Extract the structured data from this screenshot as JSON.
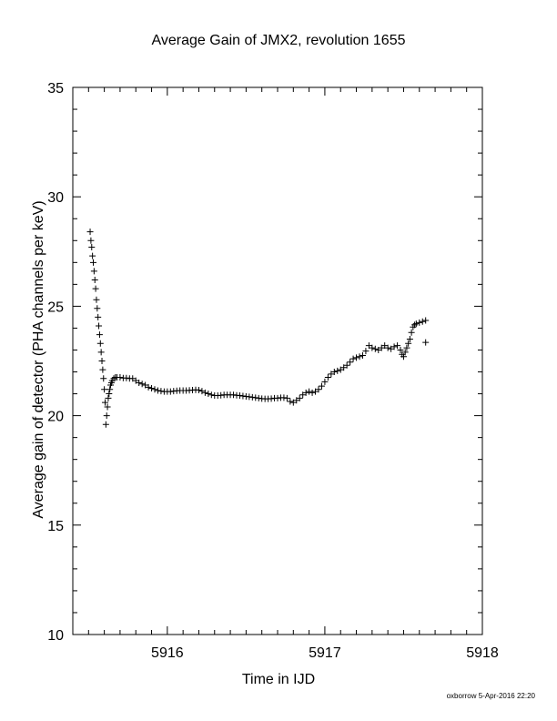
{
  "chart_data": {
    "type": "scatter",
    "title": "Average Gain of JMX2, revolution 1655",
    "xlabel": "Time in IJD",
    "ylabel": "Average gain of detector (PHA channels per keV)",
    "xlim": [
      5915.4,
      5918.0
    ],
    "ylim": [
      10,
      35
    ],
    "xticks": [
      "5916",
      "5917",
      "5918"
    ],
    "yticks": [
      "10",
      "15",
      "20",
      "25",
      "30",
      "35"
    ],
    "grid": false,
    "marker": "plus",
    "series": [
      {
        "values": [
          [
            5915.51,
            28.4
          ],
          [
            5915.515,
            28.0
          ],
          [
            5915.52,
            27.7
          ],
          [
            5915.525,
            27.3
          ],
          [
            5915.53,
            27.0
          ],
          [
            5915.535,
            26.6
          ],
          [
            5915.54,
            26.2
          ],
          [
            5915.545,
            25.8
          ],
          [
            5915.55,
            25.3
          ],
          [
            5915.555,
            24.9
          ],
          [
            5915.56,
            24.5
          ],
          [
            5915.565,
            24.1
          ],
          [
            5915.57,
            23.7
          ],
          [
            5915.575,
            23.3
          ],
          [
            5915.58,
            22.9
          ],
          [
            5915.585,
            22.5
          ],
          [
            5915.59,
            22.1
          ],
          [
            5915.595,
            21.7
          ],
          [
            5915.6,
            21.2
          ],
          [
            5915.605,
            20.6
          ],
          [
            5915.61,
            19.6
          ],
          [
            5915.615,
            20.0
          ],
          [
            5915.62,
            20.4
          ],
          [
            5915.625,
            20.8
          ],
          [
            5915.63,
            21.0
          ],
          [
            5915.635,
            21.2
          ],
          [
            5915.64,
            21.4
          ],
          [
            5915.645,
            21.5
          ],
          [
            5915.65,
            21.6
          ],
          [
            5915.66,
            21.7
          ],
          [
            5915.67,
            21.75
          ],
          [
            5915.68,
            21.75
          ],
          [
            5915.7,
            21.75
          ],
          [
            5915.72,
            21.72
          ],
          [
            5915.74,
            21.72
          ],
          [
            5915.76,
            21.7
          ],
          [
            5915.78,
            21.7
          ],
          [
            5915.8,
            21.6
          ],
          [
            5915.82,
            21.5
          ],
          [
            5915.84,
            21.45
          ],
          [
            5915.86,
            21.4
          ],
          [
            5915.88,
            21.3
          ],
          [
            5915.9,
            21.25
          ],
          [
            5915.92,
            21.2
          ],
          [
            5915.94,
            21.15
          ],
          [
            5915.96,
            21.12
          ],
          [
            5915.98,
            21.1
          ],
          [
            5916.0,
            21.1
          ],
          [
            5916.02,
            21.1
          ],
          [
            5916.04,
            21.12
          ],
          [
            5916.06,
            21.14
          ],
          [
            5916.08,
            21.15
          ],
          [
            5916.1,
            21.15
          ],
          [
            5916.12,
            21.15
          ],
          [
            5916.14,
            21.16
          ],
          [
            5916.16,
            21.17
          ],
          [
            5916.18,
            21.18
          ],
          [
            5916.2,
            21.17
          ],
          [
            5916.22,
            21.12
          ],
          [
            5916.24,
            21.05
          ],
          [
            5916.26,
            21.0
          ],
          [
            5916.28,
            20.95
          ],
          [
            5916.3,
            20.92
          ],
          [
            5916.32,
            20.92
          ],
          [
            5916.34,
            20.93
          ],
          [
            5916.36,
            20.95
          ],
          [
            5916.38,
            20.95
          ],
          [
            5916.4,
            20.95
          ],
          [
            5916.42,
            20.95
          ],
          [
            5916.44,
            20.93
          ],
          [
            5916.46,
            20.92
          ],
          [
            5916.48,
            20.9
          ],
          [
            5916.5,
            20.88
          ],
          [
            5916.52,
            20.86
          ],
          [
            5916.54,
            20.84
          ],
          [
            5916.56,
            20.82
          ],
          [
            5916.58,
            20.8
          ],
          [
            5916.6,
            20.78
          ],
          [
            5916.62,
            20.77
          ],
          [
            5916.64,
            20.77
          ],
          [
            5916.66,
            20.78
          ],
          [
            5916.68,
            20.8
          ],
          [
            5916.7,
            20.8
          ],
          [
            5916.72,
            20.82
          ],
          [
            5916.74,
            20.82
          ],
          [
            5916.76,
            20.8
          ],
          [
            5916.78,
            20.65
          ],
          [
            5916.8,
            20.6
          ],
          [
            5916.82,
            20.7
          ],
          [
            5916.84,
            20.8
          ],
          [
            5916.86,
            20.95
          ],
          [
            5916.88,
            21.05
          ],
          [
            5916.9,
            21.1
          ],
          [
            5916.92,
            21.05
          ],
          [
            5916.94,
            21.1
          ],
          [
            5916.96,
            21.2
          ],
          [
            5916.98,
            21.35
          ],
          [
            5917.0,
            21.55
          ],
          [
            5917.02,
            21.75
          ],
          [
            5917.04,
            21.9
          ],
          [
            5917.06,
            22.0
          ],
          [
            5917.08,
            22.05
          ],
          [
            5917.1,
            22.1
          ],
          [
            5917.12,
            22.2
          ],
          [
            5917.14,
            22.3
          ],
          [
            5917.16,
            22.45
          ],
          [
            5917.18,
            22.6
          ],
          [
            5917.2,
            22.65
          ],
          [
            5917.22,
            22.7
          ],
          [
            5917.24,
            22.75
          ],
          [
            5917.26,
            22.95
          ],
          [
            5917.28,
            23.2
          ],
          [
            5917.3,
            23.1
          ],
          [
            5917.32,
            23.05
          ],
          [
            5917.34,
            23.0
          ],
          [
            5917.36,
            23.1
          ],
          [
            5917.38,
            23.2
          ],
          [
            5917.4,
            23.1
          ],
          [
            5917.42,
            23.05
          ],
          [
            5917.44,
            23.15
          ],
          [
            5917.46,
            23.2
          ],
          [
            5917.48,
            23.0
          ],
          [
            5917.49,
            22.8
          ],
          [
            5917.5,
            22.7
          ],
          [
            5917.51,
            22.9
          ],
          [
            5917.52,
            23.1
          ],
          [
            5917.53,
            23.3
          ],
          [
            5917.54,
            23.5
          ],
          [
            5917.55,
            23.8
          ],
          [
            5917.56,
            24.05
          ],
          [
            5917.57,
            24.15
          ],
          [
            5917.58,
            24.2
          ],
          [
            5917.6,
            24.25
          ],
          [
            5917.62,
            24.3
          ],
          [
            5917.64,
            24.35
          ],
          [
            5917.64,
            23.35
          ]
        ]
      }
    ]
  },
  "footer": "oxborrow  5-Apr-2016 22:20"
}
